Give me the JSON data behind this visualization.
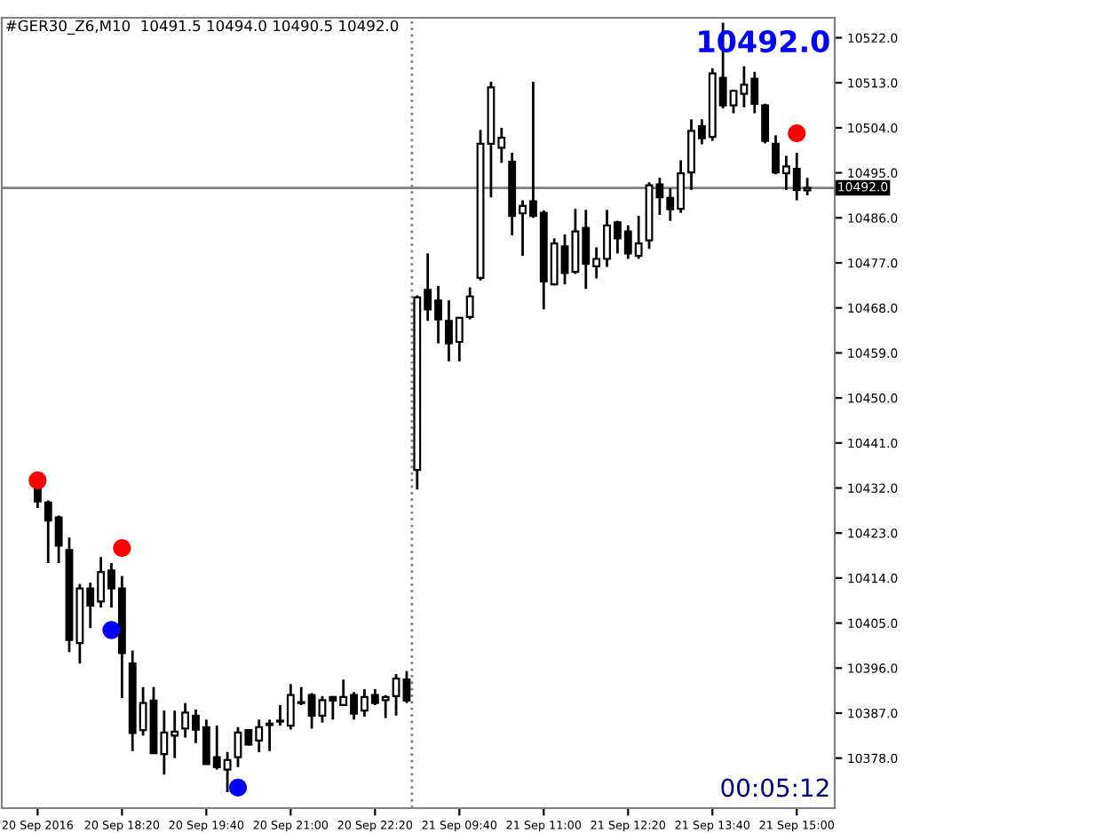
{
  "chart_data": {
    "type": "candlestick",
    "title": "#GER30_Z6,M10  10491.5 10494.0 10490.5 10492.0",
    "categories": [
      "20 Sep 2016",
      null,
      null,
      null,
      null,
      null,
      null,
      null,
      "20 Sep 18:20",
      null,
      null,
      null,
      null,
      null,
      null,
      null,
      "20 Sep 19:40",
      null,
      null,
      null,
      null,
      null,
      null,
      null,
      "20 Sep 21:00",
      null,
      null,
      null,
      null,
      null,
      null,
      null,
      "20 Sep 22:20",
      null,
      null,
      null,
      null,
      null,
      null,
      null,
      "21 Sep 09:40",
      null,
      null,
      null,
      null,
      null,
      null,
      null,
      "21 Sep 11:00",
      null,
      null,
      null,
      null,
      null,
      null,
      null,
      "21 Sep 12:20",
      null,
      null,
      null,
      null,
      null,
      null,
      null,
      "21 Sep 13:40",
      null,
      null,
      null,
      null,
      null,
      null,
      null,
      "21 Sep 15:00",
      null
    ],
    "ohlc": [
      [
        10431.7,
        10432.5,
        10428.0,
        10429.3
      ],
      [
        10429.1,
        10429.5,
        10417.0,
        10425.5
      ],
      [
        10426.1,
        10426.5,
        10417.0,
        10420.5
      ],
      [
        10419.6,
        10422.1,
        10399.2,
        10401.6
      ],
      [
        10401.0,
        10412.8,
        10396.9,
        10411.9
      ],
      [
        10411.9,
        10413.1,
        10404.0,
        10408.5
      ],
      [
        10409.3,
        10418.2,
        10408.1,
        10415.2
      ],
      [
        10415.5,
        10417.0,
        10408.1,
        10411.9
      ],
      [
        10411.9,
        10414.4,
        10390.0,
        10399.0
      ],
      [
        10396.9,
        10399.5,
        10379.4,
        10383.0
      ],
      [
        10383.6,
        10392.2,
        10382.5,
        10389.0
      ],
      [
        10389.5,
        10392.2,
        10379.0,
        10379.0
      ],
      [
        10378.8,
        10387.5,
        10374.7,
        10383.1
      ],
      [
        10382.5,
        10387.5,
        10378.0,
        10383.3
      ],
      [
        10383.9,
        10389.0,
        10382.1,
        10387.1
      ],
      [
        10386.5,
        10387.7,
        10381.0,
        10383.7
      ],
      [
        10384.2,
        10385.7,
        10376.8,
        10376.8
      ],
      [
        10378.2,
        10384.5,
        10375.7,
        10376.2
      ],
      [
        10375.7,
        10379.2,
        10371.2,
        10377.6
      ],
      [
        10378.2,
        10384.2,
        10376.2,
        10383.1
      ],
      [
        10383.6,
        10383.8,
        10380.5,
        10380.7
      ],
      [
        10381.5,
        10385.7,
        10379.2,
        10384.2
      ],
      [
        10384.6,
        10385.7,
        10379.4,
        10384.9
      ],
      [
        10385.3,
        10388.6,
        10384.5,
        10385.5
      ],
      [
        10384.5,
        10392.8,
        10383.7,
        10390.6
      ],
      [
        10389.0,
        10392.2,
        10388.6,
        10389.2
      ],
      [
        10390.6,
        10391.0,
        10383.9,
        10386.5
      ],
      [
        10386.5,
        10390.4,
        10385.1,
        10389.6
      ],
      [
        10390.2,
        10390.4,
        10385.7,
        10389.5
      ],
      [
        10388.6,
        10393.7,
        10388.4,
        10390.2
      ],
      [
        10390.6,
        10391.2,
        10385.7,
        10386.9
      ],
      [
        10387.5,
        10391.8,
        10386.3,
        10390.2
      ],
      [
        10390.6,
        10391.8,
        10388.6,
        10389.0
      ],
      [
        10389.6,
        10390.6,
        10386.0,
        10390.2
      ],
      [
        10390.4,
        10394.8,
        10386.5,
        10393.9
      ],
      [
        10393.7,
        10395.4,
        10389.0,
        10389.5
      ],
      [
        10435.6,
        10470.5,
        10431.7,
        10470.1
      ],
      [
        10471.6,
        10478.9,
        10465.4,
        10467.7
      ],
      [
        10469.5,
        10472.4,
        10460.9,
        10465.7
      ],
      [
        10465.4,
        10469.5,
        10457.3,
        10460.9
      ],
      [
        10461.2,
        10466.2,
        10457.3,
        10466.0
      ],
      [
        10466.2,
        10472.1,
        10465.7,
        10470.3
      ],
      [
        10474.0,
        10503.6,
        10473.5,
        10500.8
      ],
      [
        10500.8,
        10513.2,
        10490.1,
        10512.1
      ],
      [
        10500.0,
        10504.0,
        10497.0,
        10502.0
      ],
      [
        10497.2,
        10499.0,
        10482.5,
        10486.4
      ],
      [
        10486.9,
        10489.5,
        10478.4,
        10488.4
      ],
      [
        10489.3,
        10513.2,
        10486.0,
        10486.4
      ],
      [
        10487.0,
        10487.5,
        10467.7,
        10473.3
      ],
      [
        10472.7,
        10481.9,
        10472.5,
        10480.9
      ],
      [
        10480.3,
        10482.7,
        10472.7,
        10475.0
      ],
      [
        10475.2,
        10487.8,
        10474.8,
        10483.3
      ],
      [
        10484.0,
        10487.6,
        10471.8,
        10476.8
      ],
      [
        10476.3,
        10480.1,
        10473.9,
        10477.8
      ],
      [
        10477.8,
        10487.6,
        10476.2,
        10484.5
      ],
      [
        10485.1,
        10485.4,
        10478.9,
        10481.9
      ],
      [
        10483.3,
        10484.5,
        10477.8,
        10478.9
      ],
      [
        10478.4,
        10486.4,
        10477.8,
        10480.9
      ],
      [
        10481.5,
        10493.1,
        10479.8,
        10492.5
      ],
      [
        10492.7,
        10494.0,
        10486.6,
        10490.1
      ],
      [
        10490.0,
        10491.9,
        10485.4,
        10487.7
      ],
      [
        10487.8,
        10497.5,
        10487.0,
        10494.9
      ],
      [
        10495.1,
        10505.7,
        10491.6,
        10503.4
      ],
      [
        10504.3,
        10505.7,
        10500.7,
        10501.9
      ],
      [
        10502.2,
        10515.9,
        10501.4,
        10514.9
      ],
      [
        10514.0,
        10525.0,
        10507.9,
        10508.5
      ],
      [
        10508.5,
        10511.6,
        10506.9,
        10511.4
      ],
      [
        10510.8,
        10516.3,
        10508.1,
        10512.6
      ],
      [
        10513.8,
        10515.2,
        10506.9,
        10508.8
      ],
      [
        10508.5,
        10508.8,
        10500.9,
        10501.4
      ],
      [
        10500.8,
        10502.5,
        10494.7,
        10495.1
      ],
      [
        10494.9,
        10498.4,
        10491.6,
        10496.3
      ],
      [
        10495.8,
        10499.0,
        10489.5,
        10491.6
      ],
      [
        10491.5,
        10494.0,
        10490.5,
        10492.0
      ]
    ],
    "series": [
      {
        "type": "scatter",
        "color": "#ff0000",
        "values": [
          10433.5,
          null,
          null,
          null,
          null,
          null,
          null,
          null,
          10420.0,
          null,
          null,
          null,
          null,
          null,
          null,
          null,
          null,
          null,
          null,
          null,
          null,
          null,
          null,
          null,
          null,
          null,
          null,
          null,
          null,
          null,
          null,
          null,
          null,
          null,
          null,
          null,
          null,
          null,
          null,
          null,
          null,
          null,
          null,
          null,
          null,
          null,
          null,
          null,
          null,
          null,
          null,
          null,
          null,
          null,
          null,
          null,
          null,
          null,
          null,
          null,
          null,
          null,
          null,
          null,
          null,
          null,
          null,
          null,
          null,
          null,
          null,
          null,
          10502.9,
          null
        ]
      },
      {
        "type": "scatter",
        "color": "#0000ff",
        "values": [
          null,
          null,
          null,
          null,
          null,
          null,
          null,
          10403.6,
          null,
          null,
          null,
          null,
          null,
          null,
          null,
          null,
          null,
          null,
          null,
          10372.1,
          null,
          null,
          null,
          null,
          null,
          null,
          null,
          null,
          null,
          null,
          null,
          null,
          null,
          null,
          null,
          null,
          null,
          null,
          null,
          null,
          null,
          null,
          null,
          null,
          null,
          null,
          null,
          null,
          null,
          null,
          null,
          null,
          null,
          null,
          null,
          null,
          null,
          null,
          null,
          null,
          null,
          null,
          null,
          null,
          null,
          null,
          null,
          null,
          null,
          null,
          null,
          null,
          null,
          null
        ]
      }
    ],
    "marker": "circle",
    "ylim": [
      10368,
      10526
    ],
    "yticks": [
      {
        "value": 10378,
        "label": "10378.0"
      },
      {
        "value": 10387,
        "label": "10387.0"
      },
      {
        "value": 10396,
        "label": "10396.0"
      },
      {
        "value": 10405,
        "label": "10405.0"
      },
      {
        "value": 10414,
        "label": "10414.0"
      },
      {
        "value": 10423,
        "label": "10423.0"
      },
      {
        "value": 10432,
        "label": "10432.0"
      },
      {
        "value": 10441,
        "label": "10441.0"
      },
      {
        "value": 10450,
        "label": "10450.0"
      },
      {
        "value": 10459,
        "label": "10459.0"
      },
      {
        "value": 10468,
        "label": "10468.0"
      },
      {
        "value": 10477,
        "label": "10477.0"
      },
      {
        "value": 10486,
        "label": "10486.0"
      },
      {
        "value": 10495,
        "label": "10495.0"
      },
      {
        "value": 10504,
        "label": "10504.0"
      },
      {
        "value": 10513,
        "label": "10513.0"
      },
      {
        "value": 10522,
        "label": "10522.0"
      }
    ],
    "ref_lines": [
      {
        "axis": "y",
        "value": 10492.0,
        "label": "10492.0",
        "color": "#808080",
        "line_style": "solid"
      }
    ],
    "annotations": [
      "10492.0",
      "00:05:12"
    ]
  }
}
